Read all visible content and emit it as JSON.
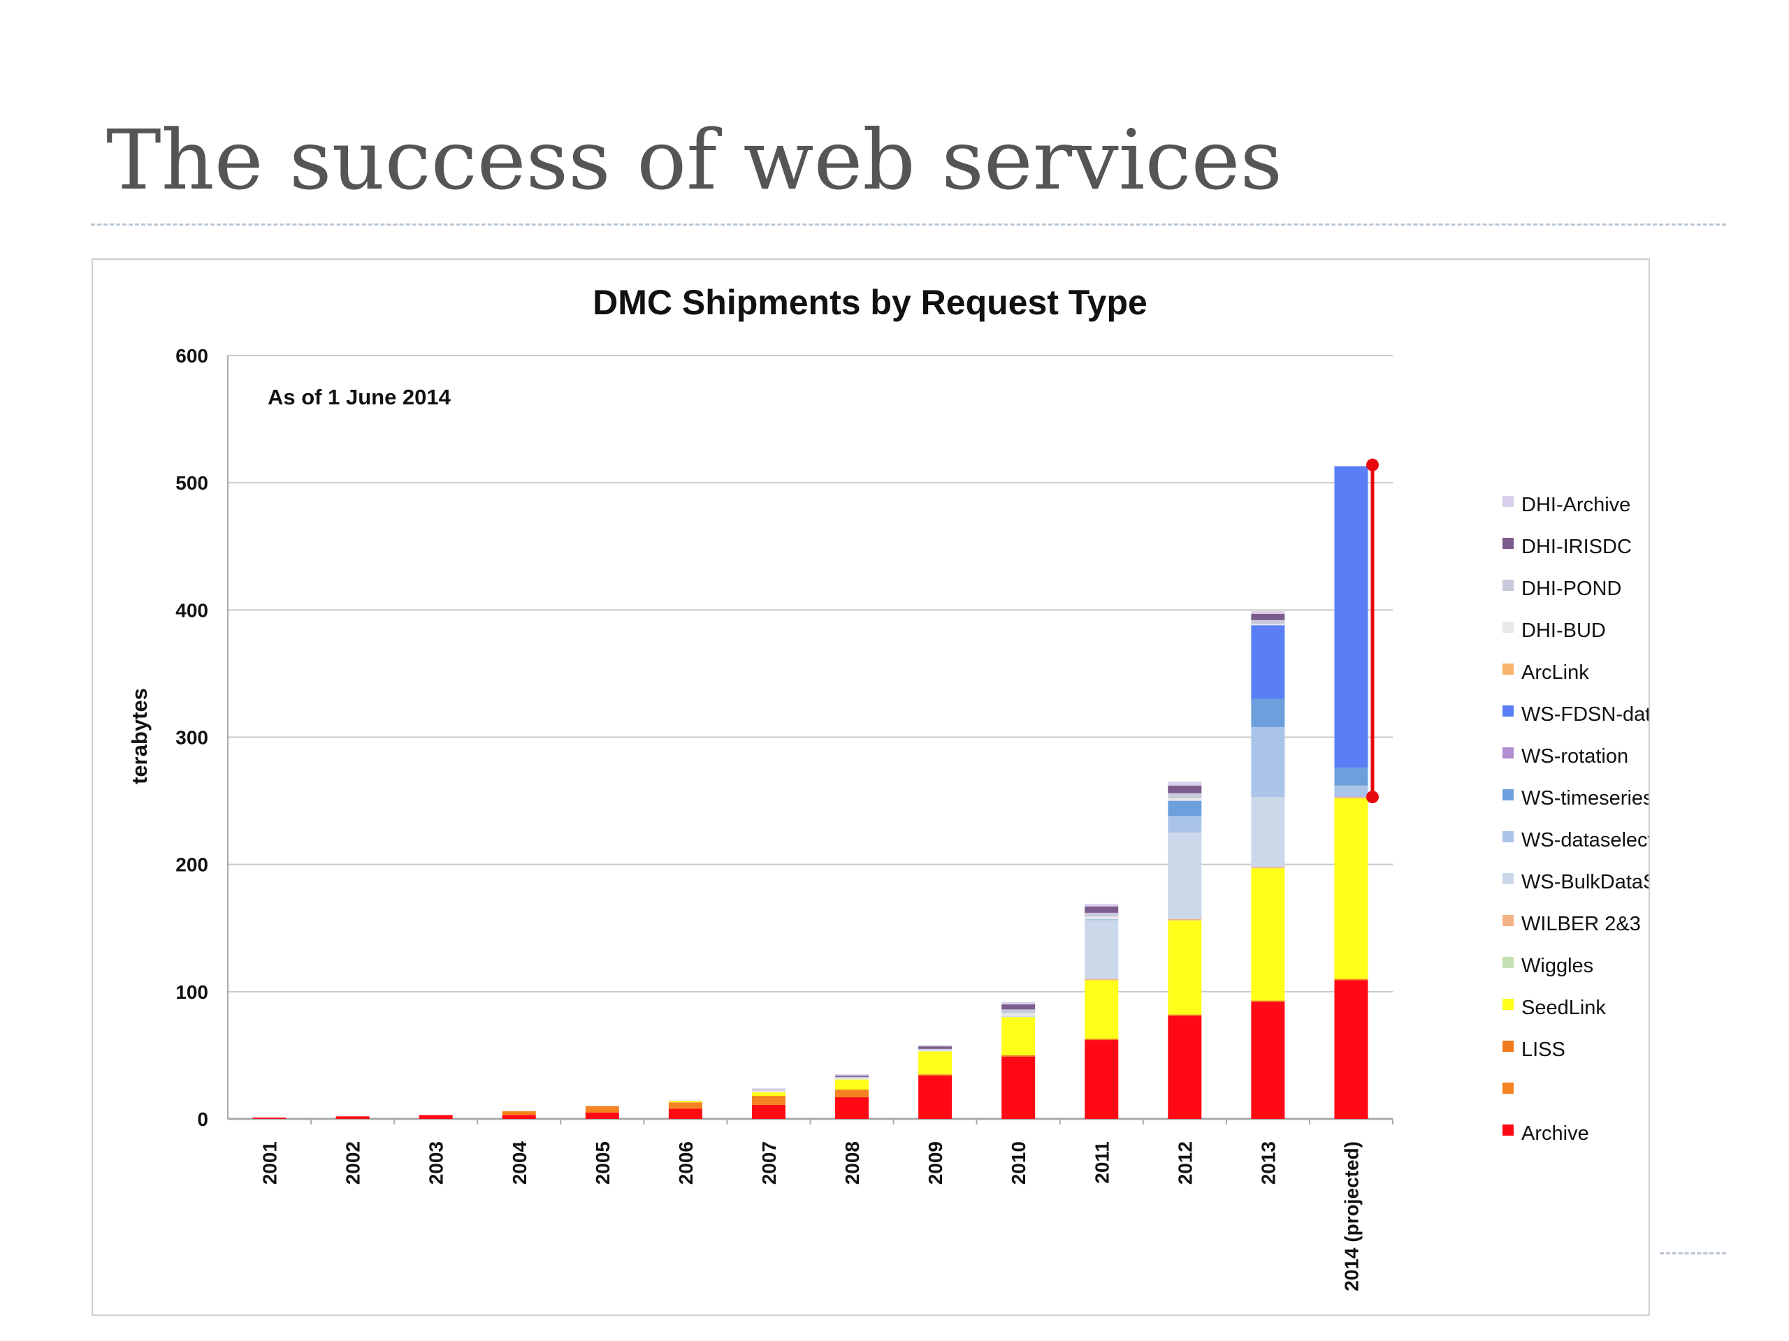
{
  "slide": {
    "title": "The success of web services"
  },
  "chart_data": {
    "type": "bar",
    "stacked": true,
    "title": "DMC Shipments by Request Type",
    "annotation": "As of 1 June 2014",
    "xlabel": "",
    "ylabel": "terabytes",
    "ylim": [
      0,
      600
    ],
    "yticks": [
      0,
      100,
      200,
      300,
      400,
      500,
      600
    ],
    "grid": true,
    "legend_position": "right",
    "categories": [
      "2001",
      "2002",
      "2003",
      "2004",
      "2005",
      "2006",
      "2007",
      "2008",
      "2009",
      "2010",
      "2011",
      "2012",
      "2013",
      "2014 (projected)"
    ],
    "series": [
      {
        "name": "Archive",
        "color": "#ff0a14",
        "values": [
          1,
          2,
          3,
          3,
          5,
          8,
          11,
          17,
          34,
          49,
          62,
          81,
          92,
          109
        ]
      },
      {
        "name": "",
        "color": "#f58220",
        "values": [
          0,
          0,
          0,
          3,
          4,
          4,
          5,
          5,
          0,
          0,
          0,
          0,
          0,
          0
        ]
      },
      {
        "name": "LISS",
        "color": "#f07a1c",
        "values": [
          0,
          0,
          0,
          0,
          1,
          1,
          2,
          1,
          1,
          1,
          1,
          1,
          1,
          1
        ]
      },
      {
        "name": "SeedLink",
        "color": "#ffff1a",
        "values": [
          0,
          0,
          0,
          0,
          0,
          1,
          3,
          8,
          18,
          30,
          46,
          74,
          104,
          142
        ]
      },
      {
        "name": "Wiggles",
        "color": "#c5e0b4",
        "values": [
          0,
          0,
          0,
          0,
          0,
          0,
          0,
          0,
          0,
          0,
          0,
          0,
          0,
          0
        ]
      },
      {
        "name": "WILBER 2&3",
        "color": "#f4b183",
        "values": [
          0,
          0,
          0,
          0,
          0,
          0,
          0,
          0,
          0,
          0,
          1,
          1,
          1,
          1
        ]
      },
      {
        "name": "WS-BulkDataSelect",
        "color": "#cbd8ea",
        "values": [
          0,
          0,
          0,
          0,
          0,
          0,
          0,
          0,
          0,
          1,
          46,
          68,
          55,
          0
        ]
      },
      {
        "name": "WS-dataselect",
        "color": "#a9c4e8",
        "values": [
          0,
          0,
          0,
          0,
          0,
          0,
          0,
          0,
          0,
          0,
          1,
          13,
          55,
          9
        ]
      },
      {
        "name": "WS-timeseries",
        "color": "#6d9fdc",
        "values": [
          0,
          0,
          0,
          0,
          0,
          0,
          0,
          0,
          0,
          0,
          0,
          12,
          22,
          14
        ]
      },
      {
        "name": "WS-rotation",
        "color": "#b08fd0",
        "values": [
          0,
          0,
          0,
          0,
          0,
          0,
          0,
          0,
          0,
          0,
          0,
          0,
          0,
          0
        ]
      },
      {
        "name": "WS-FDSN-dataselect",
        "color": "#5a7ef5",
        "values": [
          0,
          0,
          0,
          0,
          0,
          0,
          0,
          0,
          0,
          0,
          0,
          0,
          58,
          237
        ]
      },
      {
        "name": "ArcLink",
        "color": "#f9b26b",
        "values": [
          0,
          0,
          0,
          0,
          0,
          0,
          0,
          0,
          0,
          0,
          0,
          0,
          0,
          0
        ]
      },
      {
        "name": "DHI-BUD",
        "color": "#e8e8e8",
        "values": [
          0,
          0,
          0,
          0,
          0,
          1,
          1,
          1,
          1,
          2,
          2,
          2,
          1,
          0
        ]
      },
      {
        "name": "DHI-POND",
        "color": "#c9c9dc",
        "values": [
          0,
          0,
          0,
          0,
          0,
          0,
          1,
          1,
          1,
          3,
          3,
          4,
          3,
          0
        ]
      },
      {
        "name": "DHI-IRISDC",
        "color": "#7b5c8c",
        "values": [
          0,
          0,
          0,
          0,
          0,
          0,
          0,
          1,
          2,
          4,
          5,
          6,
          5,
          0
        ]
      },
      {
        "name": "DHI-Archive",
        "color": "#d9cfea",
        "values": [
          0,
          0,
          0,
          0,
          0,
          0,
          1,
          1,
          1,
          2,
          2,
          3,
          2,
          0
        ]
      }
    ],
    "highlight_range": {
      "from": 253,
      "to": 514,
      "color": "#e8090f"
    }
  }
}
